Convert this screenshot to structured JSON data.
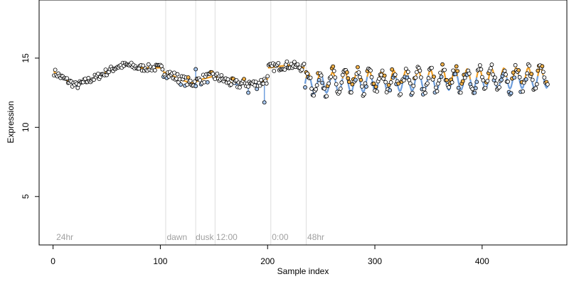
{
  "chart_data": {
    "type": "scatter",
    "title": "",
    "xlabel": "Sample index",
    "ylabel": "Expression",
    "xlim": [
      -13,
      479
    ],
    "ylim": [
      1.5,
      19.2
    ],
    "xticks": [
      0,
      100,
      200,
      300,
      400
    ],
    "yticks": [
      5,
      10,
      15
    ],
    "grid": false,
    "vlines": [
      105,
      133,
      151,
      203,
      236
    ],
    "annotations": [
      {
        "text": "24hr",
        "x": 3
      },
      {
        "text": "dawn",
        "x": 106
      },
      {
        "text": "dusk",
        "x": 133
      },
      {
        "text": "12:00",
        "x": 152
      },
      {
        "text": "0:00",
        "x": 204
      },
      {
        "text": "48hr",
        "x": 237
      }
    ],
    "colors": {
      "fit_low": "#6f9fdd",
      "fit_high": "#f0a028",
      "point_low": "#a8c8f0",
      "point_high": "#f5b34a",
      "point_mid": "#ffffff",
      "axis": "#000000",
      "annotation": "#a0a0a0",
      "vline": "#dddddd"
    },
    "series": [
      {
        "role": "observed",
        "segments": [
          {
            "x_start": 1,
            "x_end": 102,
            "baseline": 13.2,
            "trend": [
              [
                1,
                14.0
              ],
              [
                8,
                13.6
              ],
              [
                15,
                13.3
              ],
              [
                22,
                13.0
              ],
              [
                30,
                13.3
              ],
              [
                40,
                13.6
              ],
              [
                50,
                14.0
              ],
              [
                60,
                14.4
              ],
              [
                70,
                14.5
              ],
              [
                80,
                14.3
              ],
              [
                90,
                14.3
              ],
              [
                102,
                14.3
              ]
            ],
            "jitter": 0.25
          },
          {
            "x_start": 103,
            "x_end": 200,
            "baseline": 13.2,
            "trend": [
              [
                103,
                14.0
              ],
              [
                110,
                13.8
              ],
              [
                120,
                13.4
              ],
              [
                130,
                13.2
              ],
              [
                140,
                13.5
              ],
              [
                150,
                13.7
              ],
              [
                160,
                13.4
              ],
              [
                170,
                13.1
              ],
              [
                180,
                13.2
              ],
              [
                190,
                13.1
              ],
              [
                200,
                13.5
              ]
            ],
            "jitter": 0.35
          },
          {
            "x_start": 201,
            "x_end": 234,
            "baseline": 13.2,
            "trend": [
              [
                201,
                14.3
              ],
              [
                210,
                14.4
              ],
              [
                220,
                14.5
              ],
              [
                234,
                14.3
              ]
            ],
            "jitter": 0.3
          },
          {
            "x_start": 235,
            "x_end": 461,
            "baseline": 13.6,
            "trend": [
              [
                235,
                13.2
              ],
              [
                461,
                13.6
              ]
            ],
            "jitter": 0.45,
            "oscillation": {
              "period": 11.4,
              "amplitude": 0.75
            }
          }
        ],
        "outliers": [
          [
            133,
            14.2
          ],
          [
            197,
            11.8
          ],
          [
            182,
            12.5
          ]
        ]
      }
    ]
  }
}
